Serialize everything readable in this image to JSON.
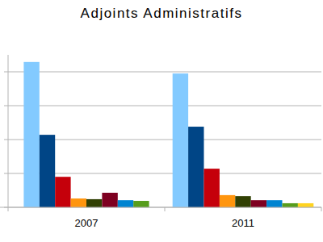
{
  "chart_data": {
    "type": "bar",
    "title": "Adjoints Administratifs",
    "categories": [
      "2007",
      "2011"
    ],
    "series": [
      {
        "color": "#83caff",
        "values": [
          4.29,
          3.95
        ]
      },
      {
        "color": "#004586",
        "values": [
          2.14,
          2.38
        ]
      },
      {
        "color": "#c5000b",
        "values": [
          0.9,
          1.14
        ]
      },
      {
        "color": "#ff950e",
        "values": [
          0.26,
          0.36
        ]
      },
      {
        "color": "#314004",
        "values": [
          0.24,
          0.33
        ]
      },
      {
        "color": "#7e0021",
        "values": [
          0.43,
          0.21
        ]
      },
      {
        "color": "#0084d1",
        "values": [
          0.21,
          0.21
        ]
      },
      {
        "color": "#579d1c",
        "values": [
          0.19,
          0.12
        ]
      },
      {
        "color": "#ffd320",
        "values": [
          null,
          0.12
        ]
      }
    ],
    "ylim": [
      0,
      4.5
    ],
    "yticks": [
      0,
      1,
      2,
      3,
      4
    ],
    "grid": true,
    "tick_labels": "x"
  }
}
